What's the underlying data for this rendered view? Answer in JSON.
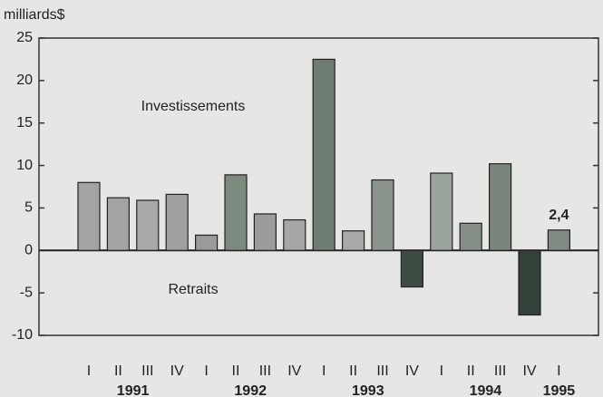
{
  "chart_data": {
    "type": "bar",
    "ylabel": "milliards$",
    "categories": [
      "I",
      "II",
      "III",
      "IV",
      "I",
      "II",
      "III",
      "IV",
      "I",
      "II",
      "III",
      "IV",
      "I",
      "II",
      "III",
      "IV",
      "I"
    ],
    "x_groups": [
      "1991",
      "1992",
      "1993",
      "1994",
      "1995"
    ],
    "values": [
      8.0,
      6.2,
      5.9,
      6.6,
      1.8,
      8.9,
      4.3,
      3.6,
      22.5,
      2.3,
      8.3,
      -4.3,
      9.1,
      3.2,
      10.2,
      -7.6,
      2.4
    ],
    "value_labels": [
      null,
      null,
      null,
      null,
      null,
      null,
      null,
      null,
      null,
      null,
      null,
      null,
      null,
      null,
      null,
      null,
      "2,4"
    ],
    "colors": [
      "#a3a3a3",
      "#a3a3a3",
      "#a8a8a8",
      "#a0a0a0",
      "#9a9a9a",
      "#7d8a80",
      "#9c9c9c",
      "#a6a6a6",
      "#6f7c72",
      "#a8a8a8",
      "#8a948c",
      "#3c4c42",
      "#9aa39c",
      "#858f87",
      "#7a857c",
      "#334238",
      "#7f8b82"
    ],
    "annotations": [
      "Investissements",
      "Retraits"
    ],
    "ylim": [
      -10,
      25
    ],
    "yticks": [
      -10,
      -5,
      0,
      5,
      10,
      15,
      20,
      25
    ]
  }
}
